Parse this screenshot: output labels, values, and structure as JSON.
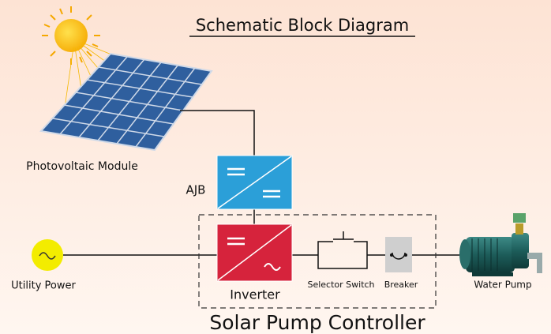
{
  "title": "Schematic Block Diagram",
  "nodes": [
    {
      "label": "Photovoltaic Module"
    },
    {
      "label": "AJB"
    },
    {
      "label": "Utility Power"
    },
    {
      "label": "Inverter"
    },
    {
      "label": "Selector Switch"
    },
    {
      "label": "Breaker"
    },
    {
      "label": "Water Pump"
    }
  ],
  "group": {
    "label": "Solar Pump Controller"
  }
}
